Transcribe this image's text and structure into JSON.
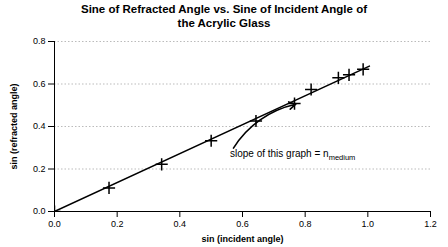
{
  "chart_data": {
    "type": "scatter",
    "title": "Sine of Refracted Angle vs. Sine of Incident Angle of\nthe Acrylic Glass",
    "xlabel": "sin (incident angle)",
    "ylabel": "sin (refracted angle)",
    "xlim": [
      0.0,
      1.2
    ],
    "ylim": [
      0.0,
      0.8
    ],
    "xticks": [
      {
        "value": 0,
        "label": "0.0"
      },
      0.2,
      0.4,
      0.6,
      0.8,
      {
        "value": 1,
        "label": "1.0"
      },
      1.2
    ],
    "yticks": [
      {
        "value": 0,
        "label": "0.0"
      },
      0.2,
      0.4,
      0.6,
      0.8
    ],
    "grid": "y",
    "series": [
      {
        "type": "scatter",
        "marker": "plus",
        "color": "#000000",
        "x": [
          0.0,
          0.174,
          0.342,
          0.5,
          0.643,
          0.766,
          0.819,
          0.906,
          0.94,
          0.985
        ],
        "values": [
          0.0,
          0.111,
          0.222,
          0.333,
          0.426,
          0.508,
          0.574,
          0.629,
          0.643,
          0.669
        ]
      },
      {
        "type": "line",
        "color": "#000000",
        "x": [
          0.0,
          1.005
        ],
        "values": [
          0.0,
          0.684036
        ]
      }
    ],
    "annotations": [
      {
        "text": "slope of this graph = n",
        "subscript": "medium",
        "x": 0.56,
        "y": 0.27,
        "arrow_x": 0.77,
        "arrow_y": 0.505
      }
    ]
  }
}
